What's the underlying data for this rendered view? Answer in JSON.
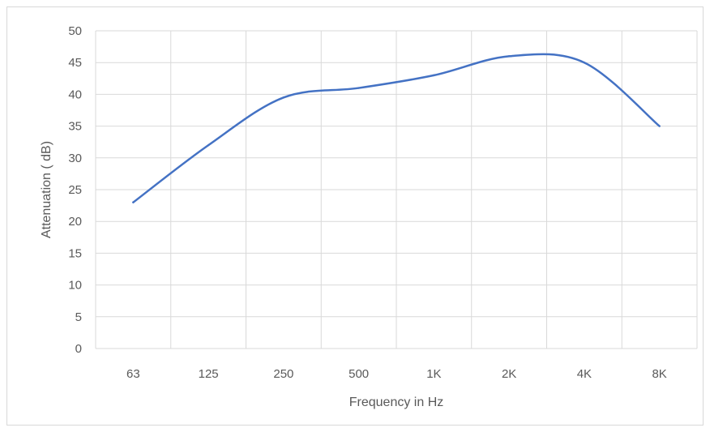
{
  "chart_data": {
    "type": "line",
    "title": "",
    "xlabel": "Frequency in Hz",
    "ylabel": "Attenuation ( dB)",
    "categories": [
      "63",
      "125",
      "250",
      "500",
      "1K",
      "2K",
      "4K",
      "8K"
    ],
    "series": [
      {
        "values": [
          23,
          32,
          39.5,
          41,
          43,
          46,
          45,
          35
        ],
        "color": "#4472c4"
      }
    ],
    "ylim": [
      0,
      50
    ],
    "yticks": [
      "0",
      "5",
      "10",
      "15",
      "20",
      "25",
      "30",
      "35",
      "40",
      "45",
      "50"
    ],
    "grid": true,
    "legend": "none"
  }
}
